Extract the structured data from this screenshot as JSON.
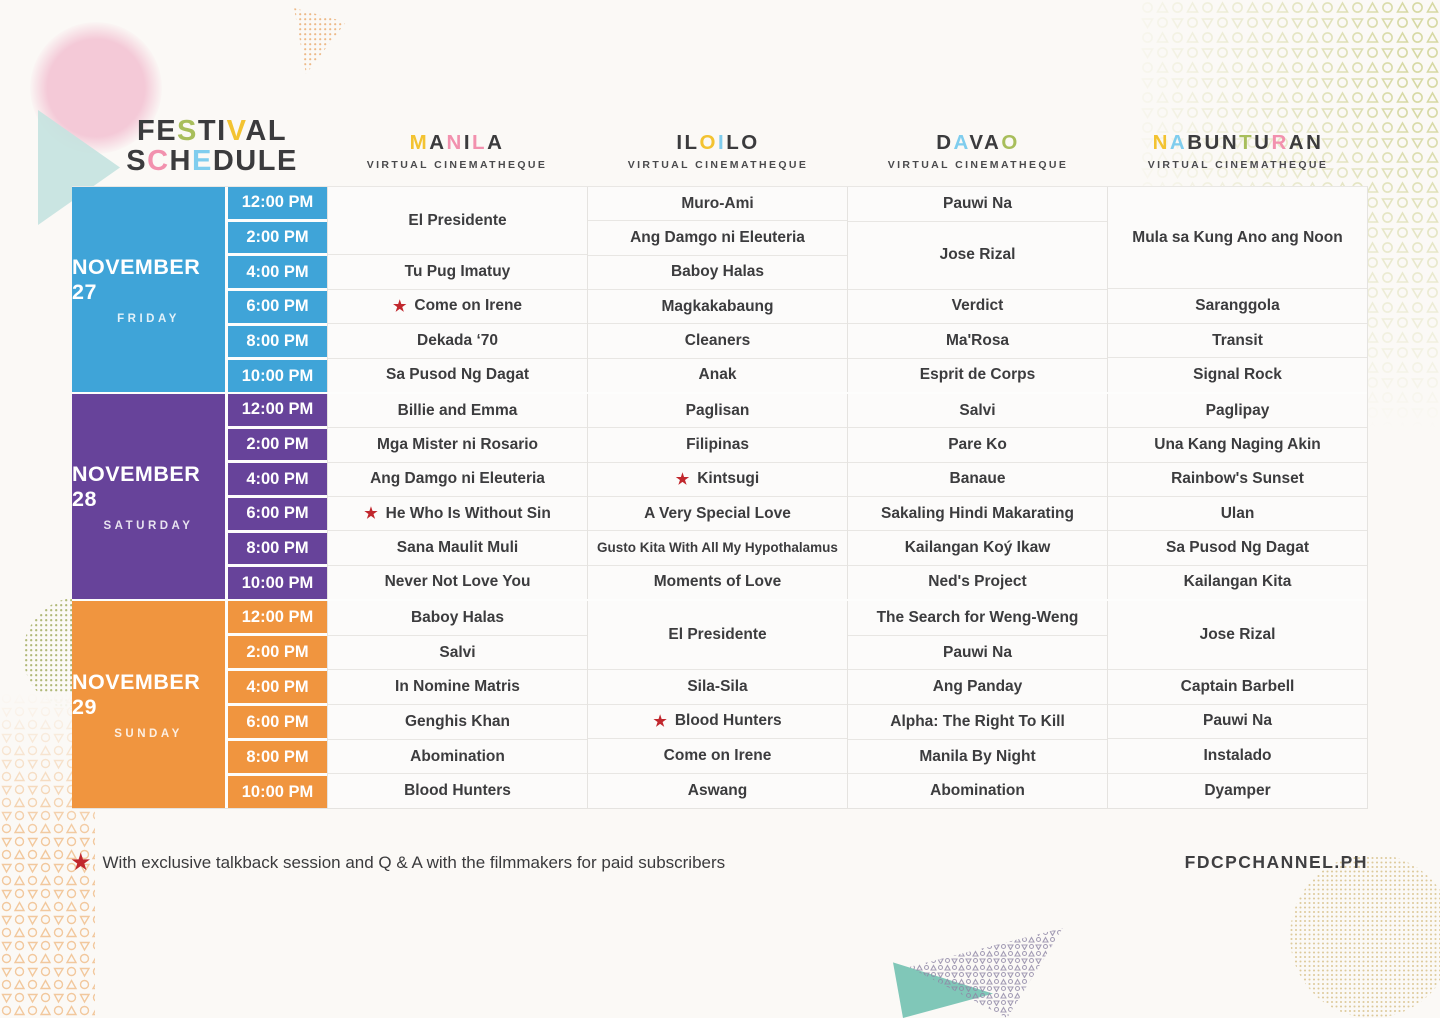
{
  "palette": {
    "dark": "#3B3B3D",
    "yellow": "#F3C331",
    "pink": "#F291AE",
    "blue": "#7FCDEE",
    "green": "#A8BE5B",
    "red": "#C1272D"
  },
  "title": {
    "line1": [
      [
        "F",
        "dark"
      ],
      [
        "E",
        "dark"
      ],
      [
        "S",
        "green"
      ],
      [
        "T",
        "dark"
      ],
      [
        "I",
        "dark"
      ],
      [
        "V",
        "yellow"
      ],
      [
        "A",
        "dark"
      ],
      [
        "L",
        "dark"
      ]
    ],
    "line2": [
      [
        "S",
        "dark"
      ],
      [
        "C",
        "pink"
      ],
      [
        "H",
        "dark"
      ],
      [
        "E",
        "blue"
      ],
      [
        "D",
        "dark"
      ],
      [
        "U",
        "dark"
      ],
      [
        "L",
        "dark"
      ],
      [
        "E",
        "dark"
      ]
    ]
  },
  "columns": [
    {
      "id": "manila",
      "name": "MANILA",
      "subtitle": "VIRTUAL CINEMATHEQUE",
      "letters": [
        [
          "M",
          "yellow"
        ],
        [
          "A",
          "dark"
        ],
        [
          "N",
          "pink"
        ],
        [
          "I",
          "dark"
        ],
        [
          "L",
          "pink"
        ],
        [
          "A",
          "dark"
        ]
      ]
    },
    {
      "id": "iloilo",
      "name": "ILOILO",
      "subtitle": "VIRTUAL CINEMATHEQUE",
      "letters": [
        [
          "I",
          "dark"
        ],
        [
          "L",
          "dark"
        ],
        [
          "O",
          "yellow"
        ],
        [
          "I",
          "blue"
        ],
        [
          "L",
          "dark"
        ],
        [
          "O",
          "dark"
        ]
      ]
    },
    {
      "id": "davao",
      "name": "DAVAO",
      "subtitle": "VIRTUAL CINEMATHEQUE",
      "letters": [
        [
          "D",
          "dark"
        ],
        [
          "A",
          "blue"
        ],
        [
          "V",
          "dark"
        ],
        [
          "A",
          "dark"
        ],
        [
          "O",
          "green"
        ]
      ]
    },
    {
      "id": "nabunturan",
      "name": "NABUNTURAN",
      "subtitle": "VIRTUAL CINEMATHEQUE",
      "letters": [
        [
          "N",
          "yellow"
        ],
        [
          "A",
          "blue"
        ],
        [
          "B",
          "dark"
        ],
        [
          "U",
          "dark"
        ],
        [
          "N",
          "dark"
        ],
        [
          "T",
          "green"
        ],
        [
          "U",
          "dark"
        ],
        [
          "R",
          "pink"
        ],
        [
          "A",
          "dark"
        ],
        [
          "N",
          "dark"
        ]
      ]
    }
  ],
  "times": [
    "12:00 PM",
    "2:00 PM",
    "4:00 PM",
    "6:00 PM",
    "8:00 PM",
    "10:00 PM"
  ],
  "days": [
    {
      "date": "NOVEMBER 27",
      "weekday": "FRIDAY",
      "color": "#3FA4D8",
      "schedule": {
        "manila": [
          {
            "t": "El Presidente",
            "span": 2
          },
          {
            "t": "Tu Pug Imatuy"
          },
          {
            "t": "Come on Irene",
            "star": true
          },
          {
            "t": "Dekada ‘70"
          },
          {
            "t": "Sa Pusod Ng Dagat"
          }
        ],
        "iloilo": [
          {
            "t": "Muro-Ami"
          },
          {
            "t": "Ang Damgo ni Eleuteria"
          },
          {
            "t": "Baboy Halas"
          },
          {
            "t": "Magkakabaung"
          },
          {
            "t": "Cleaners"
          },
          {
            "t": "Anak"
          }
        ],
        "davao": [
          {
            "t": "Pauwi Na"
          },
          {
            "t": "Jose Rizal",
            "span": 2
          },
          {
            "t": "Verdict"
          },
          {
            "t": "Ma'Rosa"
          },
          {
            "t": "Esprit de Corps"
          }
        ],
        "nabunturan": [
          {
            "t": "Mula sa Kung Ano ang Noon",
            "span": 3
          },
          {
            "t": "Saranggola"
          },
          {
            "t": "Transit"
          },
          {
            "t": "Signal Rock"
          }
        ]
      }
    },
    {
      "date": "NOVEMBER 28",
      "weekday": "SATURDAY",
      "color": "#67439A",
      "schedule": {
        "manila": [
          {
            "t": "Billie and Emma"
          },
          {
            "t": "Mga Mister ni Rosario"
          },
          {
            "t": "Ang Damgo ni Eleuteria"
          },
          {
            "t": "He Who Is Without Sin",
            "star": true
          },
          {
            "t": "Sana Maulit Muli"
          },
          {
            "t": "Never Not Love You"
          }
        ],
        "iloilo": [
          {
            "t": "Paglisan"
          },
          {
            "t": "Filipinas"
          },
          {
            "t": "Kintsugi",
            "star": true
          },
          {
            "t": "A Very Special Love"
          },
          {
            "t": "Gusto Kita With All My Hypothalamus"
          },
          {
            "t": "Moments of Love"
          }
        ],
        "davao": [
          {
            "t": "Salvi"
          },
          {
            "t": "Pare Ko"
          },
          {
            "t": "Banaue"
          },
          {
            "t": "Sakaling Hindi Makarating"
          },
          {
            "t": "Kailangan Koý Ikaw"
          },
          {
            "t": "Ned's Project"
          }
        ],
        "nabunturan": [
          {
            "t": "Paglipay"
          },
          {
            "t": "Una Kang Naging Akin"
          },
          {
            "t": "Rainbow's Sunset"
          },
          {
            "t": "Ulan"
          },
          {
            "t": "Sa Pusod Ng Dagat"
          },
          {
            "t": "Kailangan Kita"
          }
        ]
      }
    },
    {
      "date": "NOVEMBER 29",
      "weekday": "SUNDAY",
      "color": "#F0953F",
      "schedule": {
        "manila": [
          {
            "t": "Baboy Halas"
          },
          {
            "t": "Salvi"
          },
          {
            "t": "In Nomine Matris"
          },
          {
            "t": "Genghis Khan"
          },
          {
            "t": "Abomination"
          },
          {
            "t": "Blood Hunters"
          }
        ],
        "iloilo": [
          {
            "t": "El Presidente",
            "span": 2
          },
          {
            "t": "Sila-Sila"
          },
          {
            "t": "Blood Hunters",
            "star": true
          },
          {
            "t": "Come on Irene"
          },
          {
            "t": "Aswang"
          }
        ],
        "davao": [
          {
            "t": "The Search for Weng-Weng"
          },
          {
            "t": "Pauwi Na"
          },
          {
            "t": "Ang Panday"
          },
          {
            "t": "Alpha: The Right To Kill"
          },
          {
            "t": "Manila By Night"
          },
          {
            "t": "Abomination"
          }
        ],
        "nabunturan": [
          {
            "t": "Jose Rizal",
            "span": 2
          },
          {
            "t": "Captain Barbell"
          },
          {
            "t": "Pauwi Na"
          },
          {
            "t": "Instalado"
          },
          {
            "t": "Dyamper"
          }
        ]
      }
    }
  ],
  "footer": {
    "star": "★",
    "note": "With exclusive talkback session and Q & A with the filmmakers for paid subscribers",
    "site": "FDCPCHANNEL.PH"
  }
}
